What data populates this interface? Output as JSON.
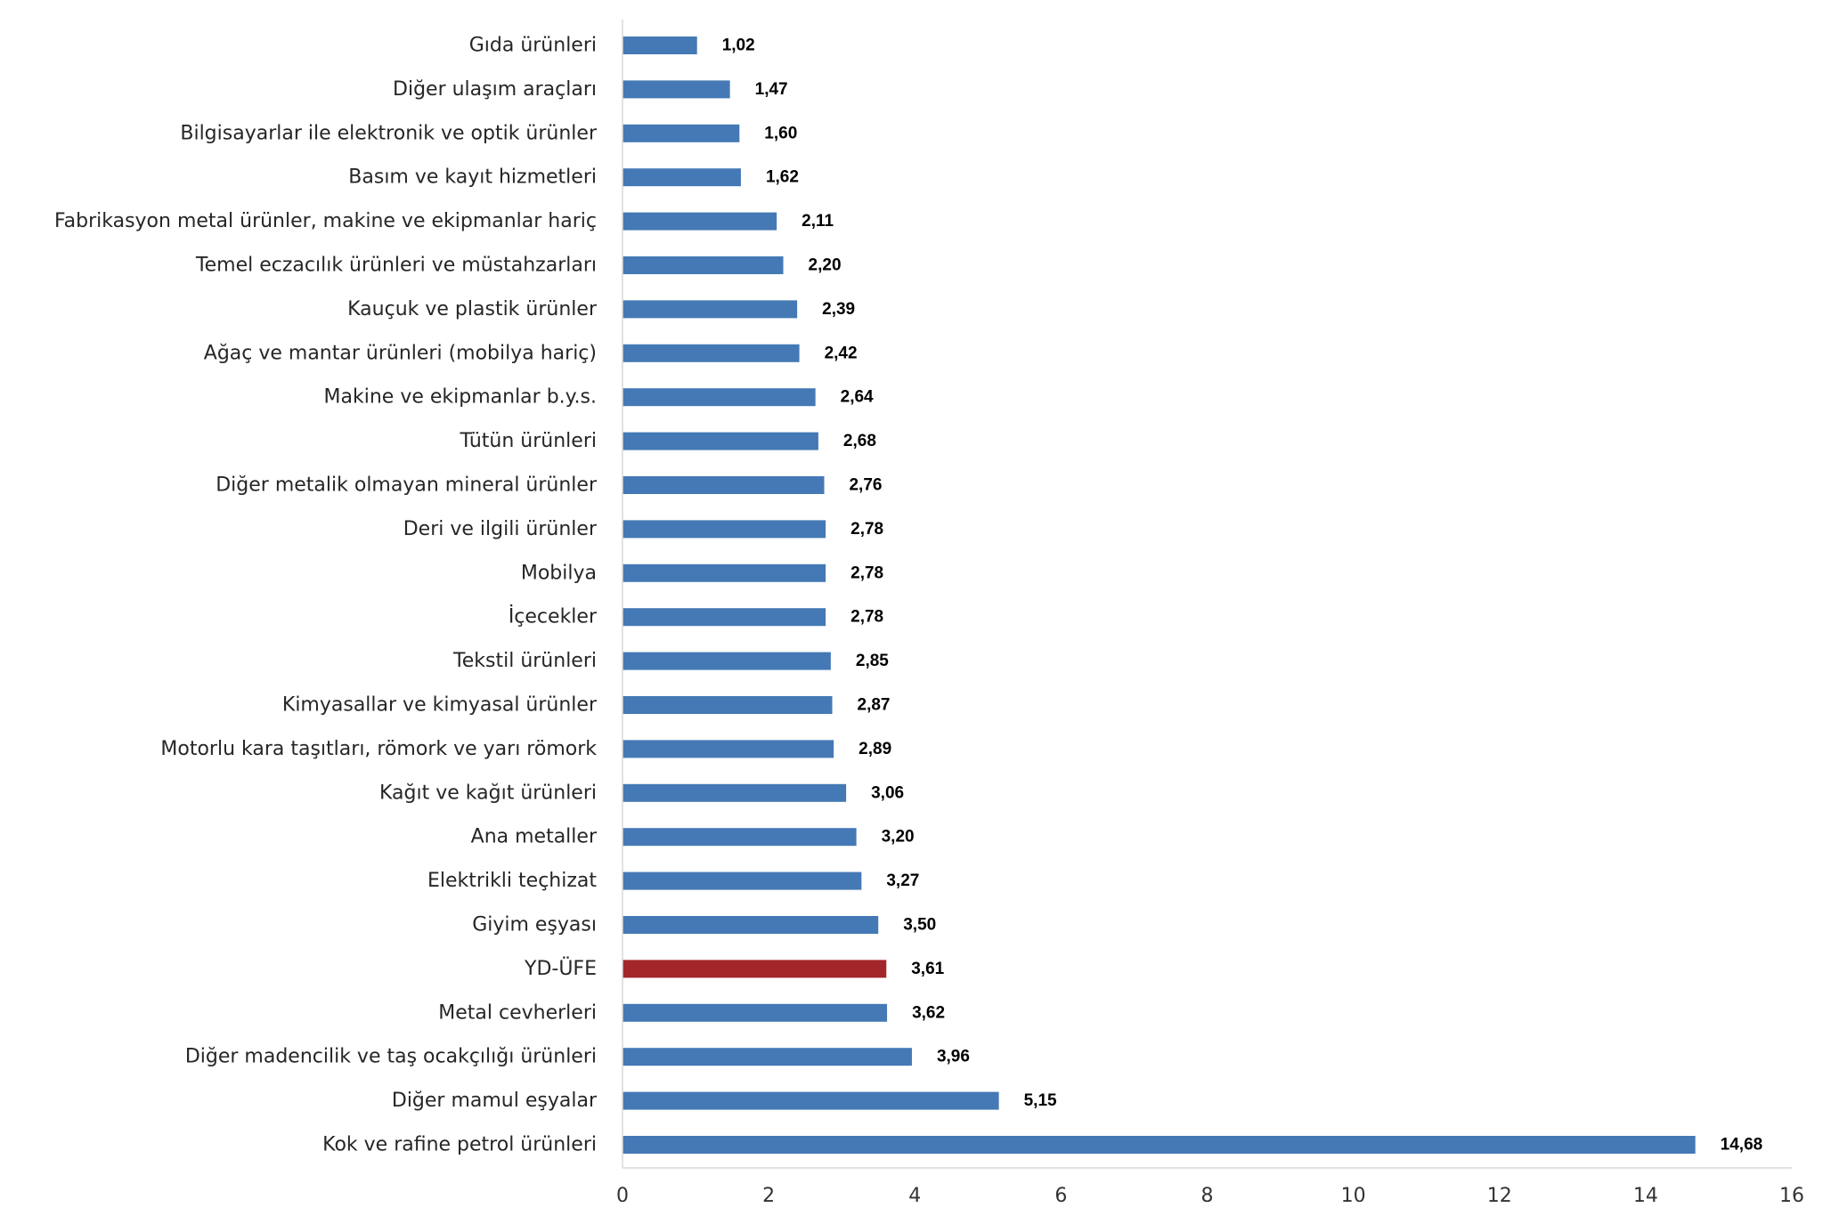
{
  "chart_data": {
    "type": "bar",
    "orientation": "horizontal",
    "title": "",
    "xlabel": "",
    "ylabel": "",
    "xlim": [
      0,
      16
    ],
    "x_ticks": [
      "0",
      "2",
      "4",
      "6",
      "8",
      "10",
      "12",
      "14",
      "16"
    ],
    "grid": false,
    "legend": "none",
    "colors": {
      "default": "#4479b5",
      "highlight": "#a3262a"
    },
    "categories": [
      "Gıda ürünleri",
      "Diğer ulaşım araçları",
      "Bilgisayarlar ile elektronik ve optik ürünler",
      "Basım ve kayıt hizmetleri",
      "Fabrikasyon metal ürünler, makine ve ekipmanlar hariç",
      "Temel eczacılık ürünleri ve müstahzarları",
      "Kauçuk ve plastik ürünler",
      "Ağaç ve mantar ürünleri (mobilya hariç)",
      "Makine ve ekipmanlar b.y.s.",
      "Tütün ürünleri",
      "Diğer metalik olmayan mineral ürünler",
      "Deri ve ilgili ürünler",
      "Mobilya",
      "İçecekler",
      "Tekstil ürünleri",
      "Kimyasallar ve kimyasal ürünler",
      "Motorlu kara taşıtları, römork ve yarı römork",
      "Kağıt ve kağıt ürünleri",
      "Ana metaller",
      "Elektrikli teçhizat",
      "Giyim eşyası",
      "YD-ÜFE",
      "Metal cevherleri",
      "Diğer madencilik ve taş ocakçılığı ürünleri",
      "Diğer mamul eşyalar",
      "Kok ve rafine petrol ürünleri"
    ],
    "values": [
      1.02,
      1.47,
      1.6,
      1.62,
      2.11,
      2.2,
      2.39,
      2.42,
      2.64,
      2.68,
      2.76,
      2.78,
      2.78,
      2.78,
      2.85,
      2.87,
      2.89,
      3.06,
      3.2,
      3.27,
      3.5,
      3.61,
      3.62,
      3.96,
      5.15,
      14.68
    ],
    "value_labels": [
      "1,02",
      "1,47",
      "1,60",
      "1,62",
      "2,11",
      "2,20",
      "2,39",
      "2,42",
      "2,64",
      "2,68",
      "2,76",
      "2,78",
      "2,78",
      "2,78",
      "2,85",
      "2,87",
      "2,89",
      "3,06",
      "3,20",
      "3,27",
      "3,50",
      "3,61",
      "3,62",
      "3,96",
      "5,15",
      "14,68"
    ],
    "highlight_category": "YD-ÜFE"
  }
}
